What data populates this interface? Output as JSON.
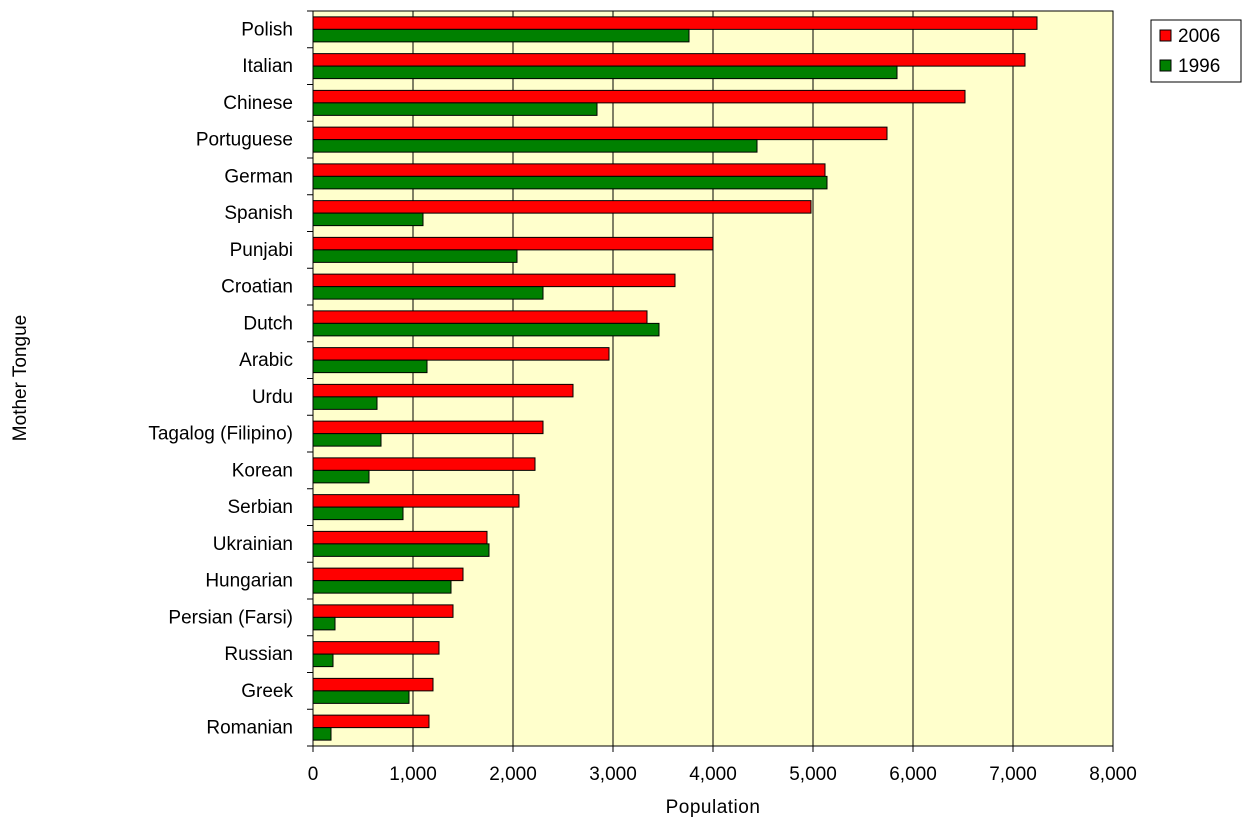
{
  "chart_data": {
    "type": "bar",
    "orientation": "horizontal",
    "xlabel": "Population",
    "ylabel": "Mother Tongue",
    "xlim": [
      0,
      8000
    ],
    "xticks": [
      0,
      1000,
      2000,
      3000,
      4000,
      5000,
      6000,
      7000,
      8000
    ],
    "xtick_labels": [
      "0",
      "1,000",
      "2,000",
      "3,000",
      "4,000",
      "5,000",
      "6,000",
      "7,000",
      "8,000"
    ],
    "grid": "vertical",
    "legend_position": "top-right",
    "plot_background": "#ffffcc",
    "categories": [
      "Polish",
      "Italian",
      "Chinese",
      "Portuguese",
      "German",
      "Spanish",
      "Punjabi",
      "Croatian",
      "Dutch",
      "Arabic",
      "Urdu",
      "Tagalog (Filipino)",
      "Korean",
      "Serbian",
      "Ukrainian",
      "Hungarian",
      "Persian (Farsi)",
      "Russian",
      "Greek",
      "Romanian"
    ],
    "series": [
      {
        "name": "2006",
        "color": "#ff0000",
        "values": [
          7240,
          7120,
          6520,
          5740,
          5120,
          4980,
          4000,
          3620,
          3340,
          2960,
          2600,
          2300,
          2220,
          2060,
          1740,
          1500,
          1400,
          1260,
          1200,
          1160
        ]
      },
      {
        "name": "1996",
        "color": "#008000",
        "values": [
          3760,
          5840,
          2840,
          4440,
          5140,
          1100,
          2040,
          2300,
          3460,
          1140,
          640,
          680,
          560,
          900,
          1760,
          1380,
          220,
          200,
          960,
          180
        ]
      }
    ]
  }
}
